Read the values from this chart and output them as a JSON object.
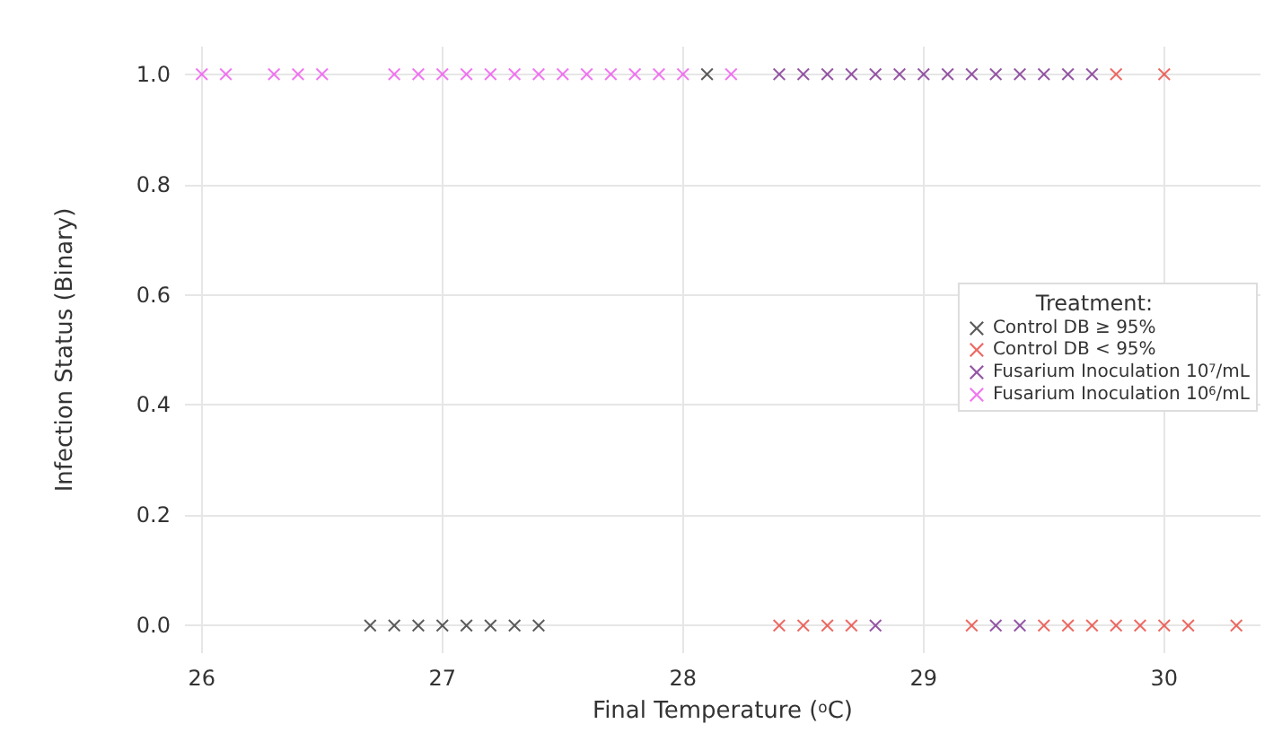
{
  "chart_data": {
    "type": "scatter",
    "xlabel": "Final Temperature ($^{o}$C)",
    "ylabel": "Infection Status (Binary)",
    "legend_title": "Treatment:",
    "xlim": [
      25.93,
      30.4
    ],
    "xticks": [
      26,
      27,
      28,
      29,
      30
    ],
    "ylim": [
      -0.05,
      1.05
    ],
    "yticks": [
      {
        "value": 0,
        "label": "0.0"
      },
      {
        "value": 0.2,
        "label": "0.2"
      },
      {
        "value": 0.4,
        "label": "0.4"
      },
      {
        "value": 0.6,
        "label": "0.6"
      },
      {
        "value": 0.8,
        "label": "0.8"
      },
      {
        "value": 1,
        "label": "1.0"
      }
    ],
    "grid": true,
    "legend": "right",
    "marker": "cross",
    "series": [
      {
        "name": "Control DB ≥ 95%",
        "color": "#333333",
        "x": [
          28.1,
          26.7,
          26.8,
          26.9,
          27.0,
          27.1,
          27.2,
          27.3,
          27.4
        ],
        "values": [
          1,
          0,
          0,
          0,
          0,
          0,
          0,
          0,
          0
        ]
      },
      {
        "name": "Control DB < 95%",
        "color": "#e8453c",
        "x": [
          29.8,
          30.0,
          28.4,
          28.5,
          28.6,
          28.7,
          29.2,
          29.5,
          29.6,
          29.7,
          29.8,
          29.9,
          30.0,
          30.1,
          30.3
        ],
        "values": [
          1,
          1,
          0,
          0,
          0,
          0,
          0,
          0,
          0,
          0,
          0,
          0,
          0,
          0,
          0
        ]
      },
      {
        "name": "Fusarium Inoculation 10$^{7}$/mL",
        "color": "#7b2d8e",
        "x": [
          28.4,
          28.5,
          28.6,
          28.7,
          28.8,
          28.9,
          29.0,
          29.1,
          29.2,
          29.3,
          29.4,
          29.5,
          29.6,
          29.7,
          28.8,
          29.3,
          29.4
        ],
        "values": [
          1,
          1,
          1,
          1,
          1,
          1,
          1,
          1,
          1,
          1,
          1,
          1,
          1,
          1,
          0,
          0,
          0
        ]
      },
      {
        "name": "Fusarium Inoculation 10$^{6}$/mL",
        "color": "#ee55ee",
        "x": [
          26.0,
          26.1,
          26.3,
          26.4,
          26.5,
          26.8,
          26.9,
          27.0,
          27.1,
          27.2,
          27.3,
          27.4,
          27.5,
          27.6,
          27.7,
          27.8,
          27.9,
          28.0,
          28.2
        ],
        "values": [
          1,
          1,
          1,
          1,
          1,
          1,
          1,
          1,
          1,
          1,
          1,
          1,
          1,
          1,
          1,
          1,
          1,
          1,
          1
        ]
      }
    ]
  }
}
